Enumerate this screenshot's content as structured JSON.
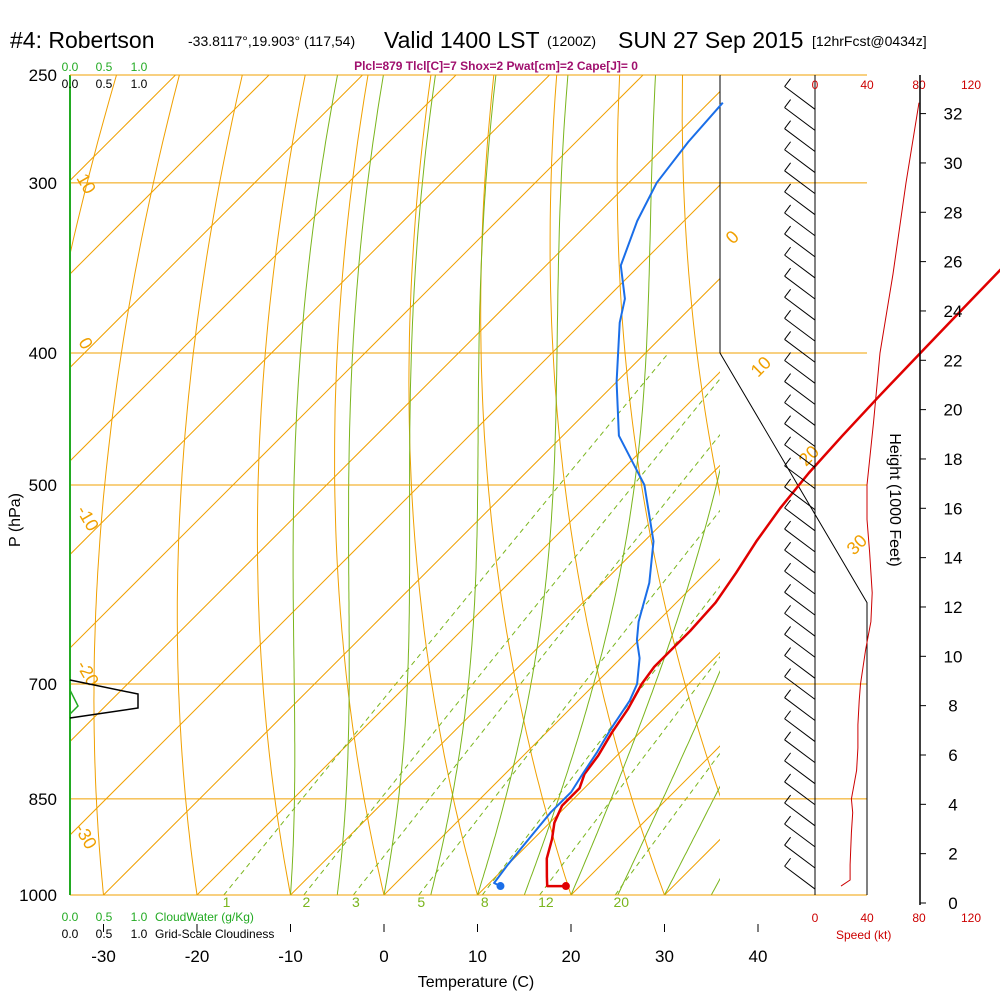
{
  "header": {
    "station": "#4: Robertson",
    "coords": "-33.8117°,19.903° (117,54)",
    "valid": "Valid 1400 LST",
    "utc": "(1200Z)",
    "date": "SUN 27 Sep 2015",
    "forecast": "[12hrFcst@0434z]",
    "stats": "Plcl=879 Tlcl[C]=7 Shox=2 Pwat[cm]=2 Cape[J]= 0"
  },
  "legends": {
    "cloudwater_ticks": [
      "0.0",
      "0.5",
      "1.0"
    ],
    "cloudiness_ticks": [
      "0.0",
      "0.5",
      "1.0"
    ],
    "cloudwater_label": "CloudWater (g/Kg)",
    "cloudiness_label": "Grid-Scale Cloudiness",
    "speed_ticks": [
      "0",
      "40",
      "80",
      "120"
    ],
    "speed_label": "Speed (kt)"
  },
  "colors": {
    "temperature": "#e00000",
    "dewpoint": "#1a6ee8",
    "isotherm_isobar": "#f0a000",
    "mixing_ratio": "#7ab51d",
    "cloudwater": "#22aa22",
    "speed": "#cc0000"
  },
  "chart_data": {
    "type": "line",
    "subtype": "skew-T log-p sounding",
    "xlabel": "Temperature (C)",
    "ylabel": "P (hPa)",
    "y2label": "Height (1000 Feet)",
    "x_ticks": [
      -30,
      -20,
      -10,
      0,
      10,
      20,
      30,
      40
    ],
    "p_ticks": [
      250,
      300,
      400,
      500,
      700,
      850,
      1000
    ],
    "height_ticks": [
      0,
      2,
      4,
      6,
      8,
      10,
      12,
      14,
      16,
      18,
      20,
      22,
      24,
      26,
      28,
      30,
      32
    ],
    "ylim": [
      1000,
      250
    ],
    "isotherm_labels": [
      {
        "text": "10",
        "p": 305
      },
      {
        "text": "0",
        "p": 385
      },
      {
        "text": "-10",
        "p": 515
      },
      {
        "text": "-20",
        "p": 675
      },
      {
        "text": "-30",
        "p": 880
      },
      {
        "text": "0",
        "p": 340
      },
      {
        "text": "10",
        "p": 420
      },
      {
        "text": "20",
        "p": 510
      },
      {
        "text": "30",
        "p": 610
      }
    ],
    "mixing_ratio_labels": [
      "1",
      "2",
      "3",
      "5",
      "8",
      "12",
      "20"
    ],
    "series": [
      {
        "name": "Temperature",
        "points": [
          [
            18.5,
            985
          ],
          [
            16.5,
            985
          ],
          [
            15.5,
            970
          ],
          [
            13.5,
            940
          ],
          [
            12.0,
            910
          ],
          [
            10.5,
            885
          ],
          [
            9.5,
            860
          ],
          [
            9.5,
            835
          ],
          [
            8.5,
            815
          ],
          [
            8.0,
            790
          ],
          [
            7.0,
            760
          ],
          [
            6.2,
            730
          ],
          [
            5.0,
            700
          ],
          [
            4.5,
            680
          ],
          [
            4.5,
            640
          ],
          [
            4.2,
            610
          ],
          [
            3.2,
            580
          ],
          [
            2.0,
            550
          ],
          [
            1.0,
            520
          ],
          [
            0.3,
            490
          ],
          [
            -0.1,
            460
          ],
          [
            -0.4,
            430
          ],
          [
            -0.6,
            400
          ],
          [
            -0.8,
            370
          ],
          [
            -1.0,
            340
          ],
          [
            -1.1,
            310
          ],
          [
            -1.1,
            285
          ],
          [
            -1.0,
            262
          ]
        ]
      },
      {
        "name": "Dewpoint",
        "points": [
          [
            11.5,
            985
          ],
          [
            10.5,
            980
          ],
          [
            10.0,
            950
          ],
          [
            9.5,
            910
          ],
          [
            9.0,
            870
          ],
          [
            9.0,
            840
          ],
          [
            8.3,
            815
          ],
          [
            7.5,
            785
          ],
          [
            6.5,
            755
          ],
          [
            5.5,
            720
          ],
          [
            4.5,
            700
          ],
          [
            2.0,
            670
          ],
          [
            -0.2,
            650
          ],
          [
            -2.0,
            630
          ],
          [
            -5.0,
            590
          ],
          [
            -9.0,
            550
          ],
          [
            -16.0,
            500
          ],
          [
            -24.0,
            460
          ],
          [
            -30.0,
            420
          ],
          [
            -36.0,
            380
          ],
          [
            -38.0,
            365
          ],
          [
            -42.0,
            345
          ],
          [
            -45.0,
            320
          ],
          [
            -47.0,
            300
          ],
          [
            -48.0,
            280
          ],
          [
            -48.5,
            262
          ]
        ]
      },
      {
        "name": "Speed",
        "points": [
          [
            20,
            985
          ],
          [
            27,
            975
          ],
          [
            27,
            950
          ],
          [
            28,
            900
          ],
          [
            29,
            870
          ],
          [
            28,
            850
          ],
          [
            30,
            830
          ],
          [
            32,
            810
          ],
          [
            33,
            780
          ],
          [
            33,
            750
          ],
          [
            34,
            720
          ],
          [
            35,
            700
          ],
          [
            39,
            660
          ],
          [
            43,
            630
          ],
          [
            44,
            600
          ],
          [
            42,
            560
          ],
          [
            40,
            530
          ],
          [
            40,
            500
          ],
          [
            45,
            450
          ],
          [
            50,
            400
          ],
          [
            60,
            350
          ],
          [
            70,
            300
          ],
          [
            80,
            262
          ]
        ]
      }
    ],
    "surface_points": [
      {
        "name": "Temperature",
        "x": 18.5,
        "p": 985
      },
      {
        "name": "Dewpoint",
        "x": 11.5,
        "p": 985
      }
    ]
  }
}
